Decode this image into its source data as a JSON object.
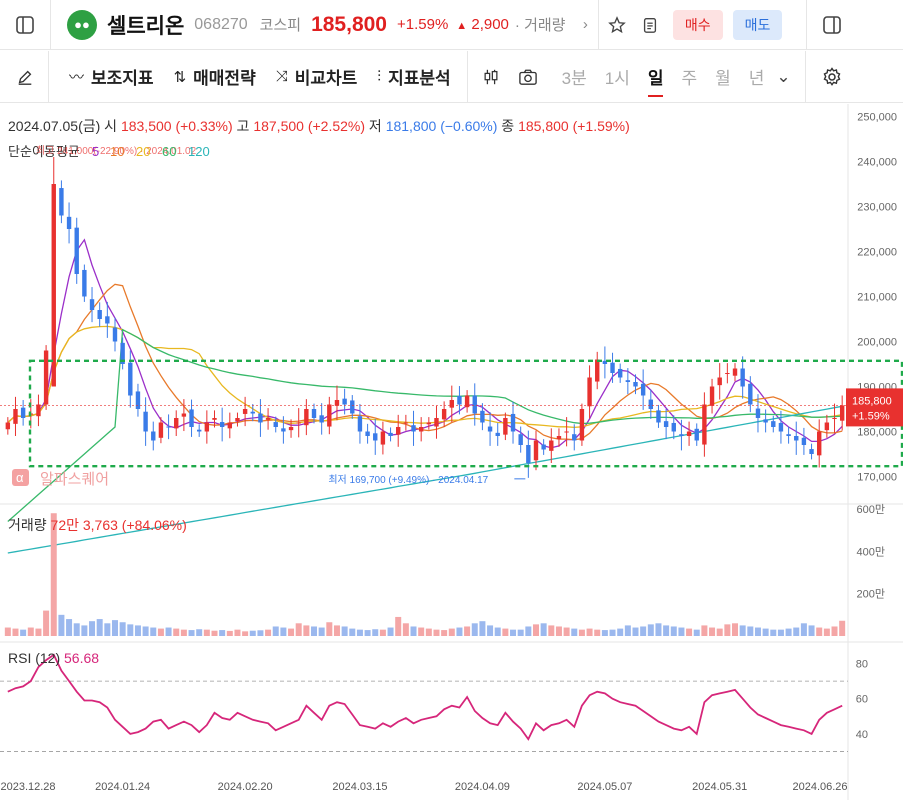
{
  "header": {
    "name": "셀트리온",
    "code": "068270",
    "market": "코스피",
    "price": "185,800",
    "pct": "+1.59%",
    "change": "2,900",
    "more": "· 거래량",
    "buy": "매수",
    "sell": "매도"
  },
  "toolbar": {
    "items": [
      "보조지표",
      "매매전략",
      "비교차트",
      "지표분석"
    ],
    "periods": [
      "3분",
      "1시",
      "일",
      "주",
      "월",
      "년"
    ]
  },
  "info": {
    "date": "2024.07.05(금)",
    "open_label": "시",
    "open": "183,500 (+0.33%)",
    "high_label": "고",
    "high": "187,500 (+2.52%)",
    "low_label": "저",
    "low": "181,800 (−0.60%)",
    "close_label": "종",
    "close": "185,800 (+1.59%)",
    "ma_label": "단순이동평균",
    "ma_periods": [
      "5",
      "10",
      "20",
      "60",
      "120"
    ],
    "ma_overlap": "최고 241,000(-22.90%) · 2024.01.02",
    "low_annot": "최저 169,700 (+9.49%) · 2024.04.17",
    "current_price": "185,800",
    "current_pct": "+1.59%",
    "watermark": "알파스퀘어"
  },
  "volume": {
    "label": "거래량",
    "value": "72만 3,763 (+84.06%)"
  },
  "rsi": {
    "label": "RSI (12)",
    "value": "56.68"
  },
  "colors": {
    "up": "#e8312f",
    "down": "#3a7be8",
    "ma5": "#9b2fc9",
    "ma10": "#e87a2b",
    "ma20": "#e8b820",
    "ma60": "#38b96a",
    "ma120": "#2bb5b8",
    "rsi": "#d6267a",
    "box": "#1faa4b"
  },
  "chart_data": [
    {
      "type": "candlestick",
      "x_ticks": [
        "2023.12.28",
        "2024.01.24",
        "2024.02.20",
        "2024.03.15",
        "2024.04.09",
        "2024.05.07",
        "2024.05.31",
        "2024.06.26"
      ],
      "y_ticks": [
        "170,000",
        "180,000",
        "190,000",
        "200,000",
        "210,000",
        "220,000",
        "230,000",
        "240,000",
        "250,000"
      ],
      "ylim": [
        165000,
        251000
      ],
      "close": [
        182000,
        185000,
        183000,
        184000,
        186000,
        198000,
        235000,
        228000,
        225000,
        215000,
        210000,
        207000,
        205000,
        204000,
        200000,
        195000,
        188000,
        185000,
        180000,
        178000,
        182000,
        181000,
        183000,
        184000,
        181000,
        180000,
        182000,
        183000,
        181000,
        182000,
        183000,
        185000,
        184000,
        182000,
        183000,
        181000,
        180000,
        181000,
        182000,
        185000,
        183000,
        182000,
        186000,
        187000,
        186000,
        184000,
        180000,
        179000,
        178000,
        180000,
        179000,
        181000,
        182000,
        180000,
        181000,
        182000,
        183000,
        185000,
        187000,
        186000,
        188000,
        184000,
        182000,
        180000,
        179000,
        183000,
        180000,
        177000,
        173000,
        178000,
        176000,
        178000,
        179000,
        180000,
        178000,
        185000,
        192000,
        196000,
        195000,
        193000,
        192000,
        191000,
        190000,
        188000,
        185000,
        182000,
        181000,
        180000,
        179000,
        180000,
        178000,
        186000,
        190000,
        192000,
        193000,
        194000,
        190000,
        186000,
        183000,
        182000,
        181000,
        180000,
        179000,
        178000,
        177000,
        175000,
        180000,
        182000,
        183000,
        185800
      ],
      "low_value": 169700,
      "high_value": 241000,
      "box_range": [
        172300,
        195700
      ]
    },
    {
      "type": "bar",
      "name": "volume",
      "y_ticks": [
        "200만",
        "400만",
        "600만"
      ],
      "ylim": [
        0,
        600
      ],
      "values": [
        40,
        35,
        30,
        40,
        35,
        120,
        580,
        100,
        80,
        60,
        50,
        70,
        80,
        60,
        75,
        65,
        55,
        50,
        45,
        40,
        35,
        40,
        35,
        30,
        28,
        32,
        30,
        25,
        28,
        24,
        30,
        22,
        25,
        27,
        30,
        45,
        40,
        35,
        60,
        50,
        45,
        40,
        65,
        50,
        45,
        35,
        30,
        28,
        32,
        30,
        40,
        90,
        60,
        45,
        40,
        35,
        30,
        28,
        35,
        40,
        45,
        60,
        70,
        50,
        40,
        35,
        30,
        30,
        45,
        55,
        60,
        50,
        45,
        40,
        35,
        30,
        35,
        30,
        28,
        30,
        35,
        50,
        40,
        45,
        55,
        60,
        50,
        45,
        40,
        35,
        30,
        50,
        40,
        35,
        55,
        60,
        50,
        45,
        40,
        35,
        30,
        30,
        35,
        40,
        60,
        50,
        40,
        35,
        45,
        72
      ]
    },
    {
      "type": "line",
      "name": "RSI",
      "y_ticks": [
        "40",
        "60",
        "80"
      ],
      "ylim": [
        20,
        90
      ],
      "values": [
        64,
        66,
        67,
        70,
        78,
        82,
        85,
        76,
        70,
        64,
        59,
        59,
        58,
        55,
        48,
        44,
        40,
        41,
        43,
        47,
        48,
        43,
        45,
        47,
        45,
        41,
        45,
        52,
        49,
        48,
        52,
        50,
        48,
        47,
        46,
        42,
        44,
        46,
        48,
        56,
        52,
        48,
        56,
        58,
        57,
        51,
        45,
        44,
        43,
        46,
        44,
        47,
        49,
        46,
        48,
        49,
        50,
        54,
        56,
        55,
        61,
        53,
        49,
        46,
        45,
        52,
        47,
        43,
        37,
        46,
        42,
        45,
        46,
        48,
        44,
        56,
        62,
        64,
        63,
        60,
        58,
        57,
        56,
        53,
        50,
        47,
        45,
        43,
        42,
        44,
        40,
        58,
        62,
        63,
        64,
        65,
        60,
        55,
        51,
        49,
        47,
        45,
        44,
        43,
        42,
        40,
        48,
        52,
        54,
        56
      ]
    }
  ]
}
